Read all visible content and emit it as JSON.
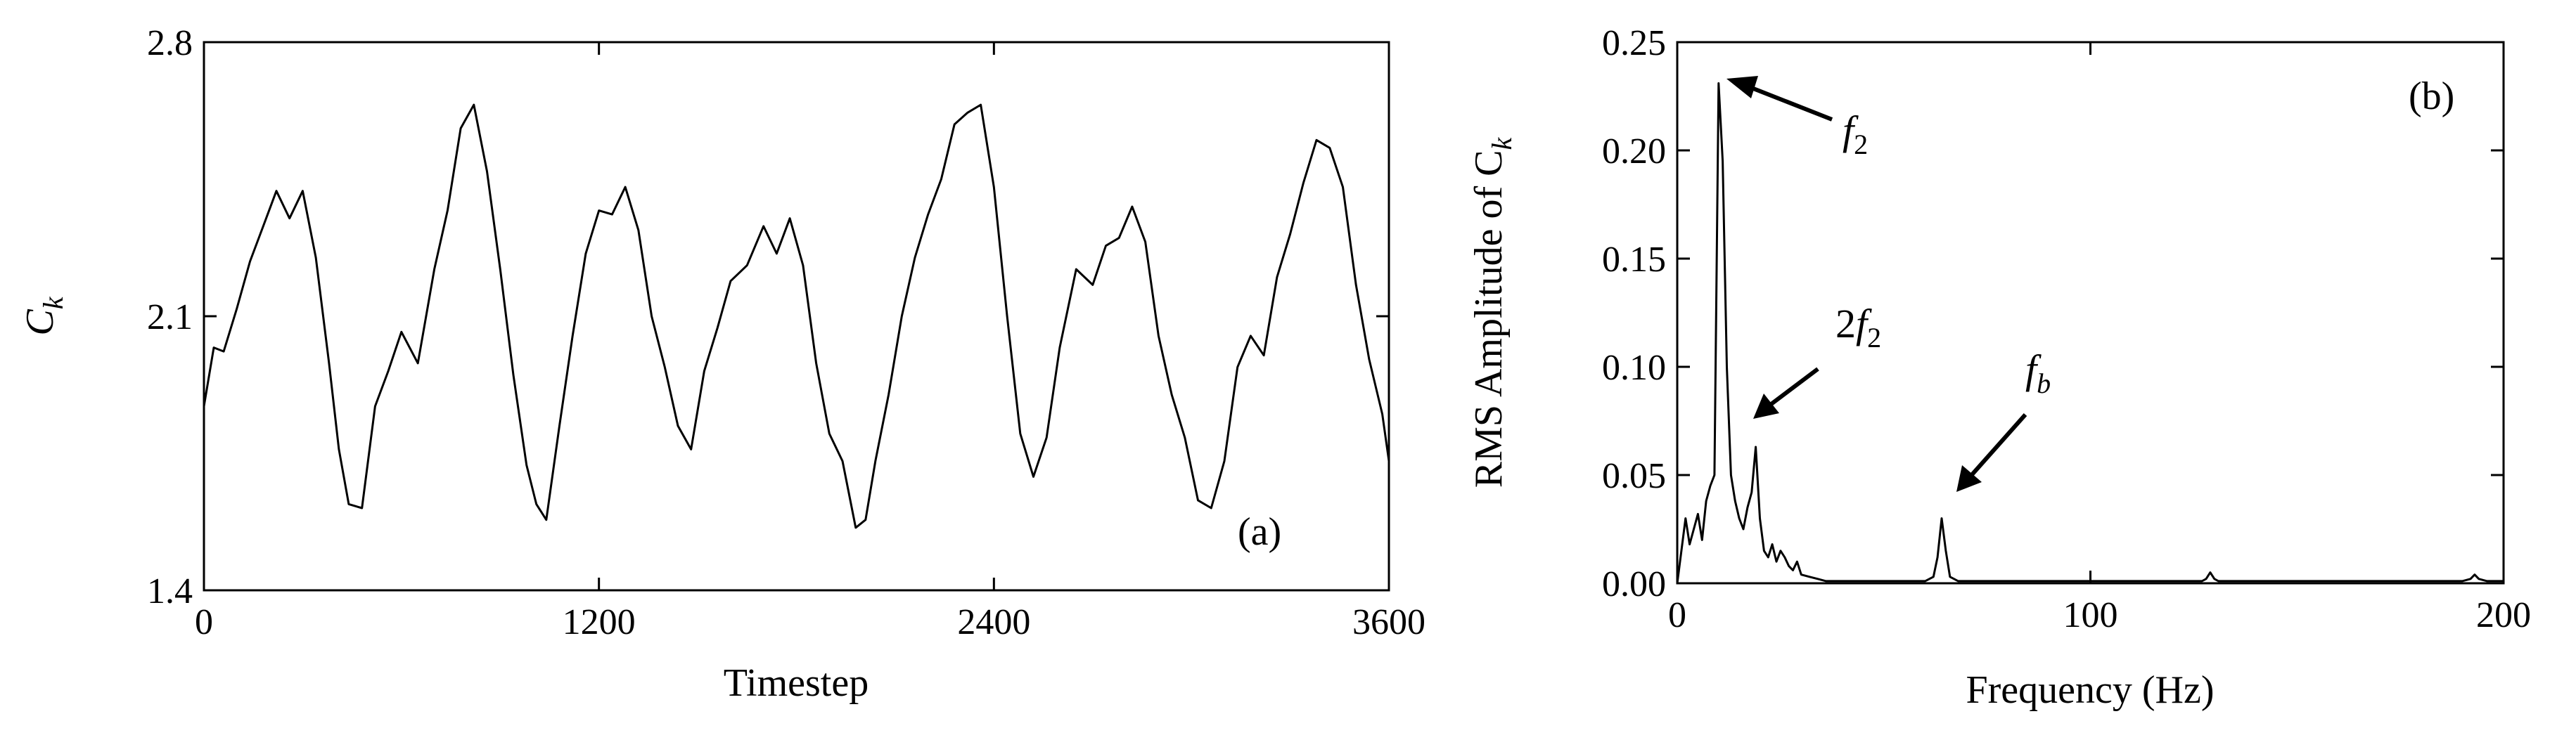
{
  "chart_data": [
    {
      "type": "line",
      "panel_label": "(a)",
      "xlabel": "Timestep",
      "ylabel_base": "C",
      "ylabel_sub": "k",
      "xlim": [
        0,
        3600
      ],
      "ylim": [
        1.4,
        2.8
      ],
      "x_ticks": [
        "0",
        "1200",
        "2400",
        "3600"
      ],
      "y_ticks": [
        "1.4",
        "2.1",
        "2.8"
      ],
      "grid": false,
      "series": [
        {
          "x": [
            0,
            30,
            60,
            100,
            140,
            180,
            220,
            260,
            300,
            340,
            380,
            410,
            440,
            480,
            520,
            560,
            600,
            650,
            700,
            740,
            780,
            820,
            860,
            900,
            940,
            980,
            1010,
            1040,
            1080,
            1120,
            1160,
            1200,
            1240,
            1280,
            1320,
            1360,
            1400,
            1440,
            1480,
            1520,
            1560,
            1600,
            1650,
            1700,
            1740,
            1780,
            1820,
            1860,
            1900,
            1940,
            1980,
            2010,
            2040,
            2080,
            2120,
            2160,
            2200,
            2240,
            2280,
            2320,
            2360,
            2400,
            2440,
            2480,
            2520,
            2560,
            2600,
            2650,
            2700,
            2740,
            2780,
            2820,
            2860,
            2900,
            2940,
            2980,
            3020,
            3060,
            3100,
            3140,
            3180,
            3220,
            3260,
            3300,
            3340,
            3380,
            3420,
            3460,
            3500,
            3540,
            3580,
            3600
          ],
          "y": [
            1.87,
            2.02,
            2.01,
            2.12,
            2.24,
            2.33,
            2.42,
            2.35,
            2.42,
            2.25,
            1.98,
            1.76,
            1.62,
            1.61,
            1.87,
            1.96,
            2.06,
            1.98,
            2.22,
            2.37,
            2.58,
            2.64,
            2.47,
            2.22,
            1.95,
            1.72,
            1.62,
            1.58,
            1.82,
            2.05,
            2.26,
            2.37,
            2.36,
            2.43,
            2.32,
            2.1,
            1.97,
            1.82,
            1.76,
            1.96,
            2.07,
            2.19,
            2.23,
            2.33,
            2.26,
            2.35,
            2.23,
            1.98,
            1.8,
            1.73,
            1.56,
            1.58,
            1.73,
            1.9,
            2.1,
            2.25,
            2.36,
            2.45,
            2.59,
            2.62,
            2.64,
            2.43,
            2.1,
            1.8,
            1.69,
            1.79,
            2.02,
            2.22,
            2.18,
            2.28,
            2.3,
            2.38,
            2.29,
            2.05,
            1.9,
            1.79,
            1.63,
            1.61,
            1.73,
            1.97,
            2.05,
            2.0,
            2.2,
            2.31,
            2.44,
            2.55,
            2.53,
            2.43,
            2.18,
            1.99,
            1.85,
            1.73
          ]
        }
      ]
    },
    {
      "type": "line",
      "panel_label": "(b)",
      "xlabel": "Frequency (Hz)",
      "ylabel_base": "RMS Amplitude of C",
      "ylabel_sub": "k",
      "xlim": [
        0,
        200
      ],
      "ylim": [
        0,
        0.25
      ],
      "x_ticks": [
        "0",
        "100",
        "200"
      ],
      "y_ticks": [
        "0.00",
        "0.05",
        "0.10",
        "0.15",
        "0.20",
        "0.25"
      ],
      "grid": false,
      "annotations": [
        {
          "label_base": "f",
          "label_sub": "2",
          "label_prefix": ""
        },
        {
          "label_base": "f",
          "label_sub": "2",
          "label_prefix": "2"
        },
        {
          "label_base": "f",
          "label_sub": "b",
          "label_prefix": ""
        }
      ],
      "series": [
        {
          "x": [
            0,
            1,
            2,
            3,
            4,
            5,
            6,
            7,
            8,
            9,
            10,
            11,
            12,
            13,
            14,
            15,
            16,
            17,
            18,
            19,
            20,
            21,
            22,
            23,
            24,
            25,
            26,
            27,
            28,
            29,
            30,
            32,
            34,
            36,
            40,
            50,
            60,
            62,
            63,
            64,
            65,
            66,
            68,
            75,
            100,
            127,
            128,
            129,
            130,
            131,
            150,
            190,
            192,
            193,
            194,
            196,
            200
          ],
          "y": [
            0.0,
            0.015,
            0.03,
            0.018,
            0.025,
            0.032,
            0.02,
            0.038,
            0.045,
            0.05,
            0.231,
            0.195,
            0.1,
            0.05,
            0.038,
            0.03,
            0.025,
            0.035,
            0.042,
            0.063,
            0.03,
            0.015,
            0.012,
            0.018,
            0.01,
            0.015,
            0.012,
            0.008,
            0.006,
            0.01,
            0.004,
            0.003,
            0.002,
            0.001,
            0.001,
            0.001,
            0.001,
            0.003,
            0.012,
            0.03,
            0.015,
            0.003,
            0.001,
            0.001,
            0.001,
            0.001,
            0.002,
            0.005,
            0.002,
            0.001,
            0.001,
            0.001,
            0.002,
            0.004,
            0.002,
            0.001,
            0.001
          ]
        }
      ]
    }
  ]
}
